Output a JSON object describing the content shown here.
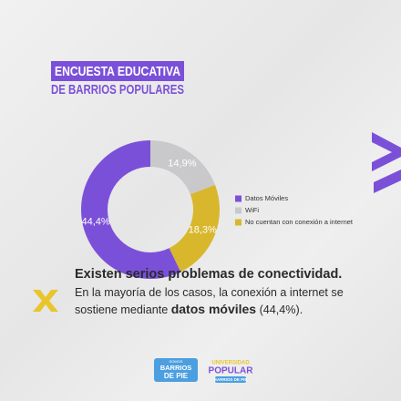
{
  "header": {
    "title_lines": [
      "ENCUESTA EDUCATIVA",
      "DE BARRIOS POPULARES"
    ]
  },
  "chart_data": {
    "type": "donut",
    "categories": [
      "Datos Móviles",
      "WiFi",
      "No cuentan con conexión a internet"
    ],
    "values": [
      44.4,
      14.9,
      18.3
    ],
    "value_labels": [
      "44,4%",
      "14,9%",
      "18,3%"
    ],
    "colors": [
      "#7b50d9",
      "#c9c9cc",
      "#d8b72c"
    ],
    "legend": "right"
  },
  "finding": {
    "headline": "Existen serios problemas de conectividad.",
    "body": [
      "En la mayoría de los casos, la conexión a internet se sostiene mediante",
      "datos móviles",
      "(44,4%)."
    ]
  },
  "logos": [
    {
      "lines": [
        "SOMOS",
        "BARRIOS",
        "DE PIE"
      ]
    },
    {
      "lines": [
        "UNIVERSIDAD",
        "POPULAR",
        "BARRIOS DE PIE"
      ]
    }
  ]
}
